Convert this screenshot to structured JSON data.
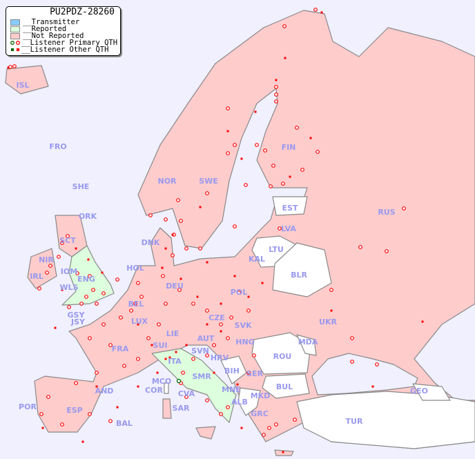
{
  "legend": {
    "title": "PU2PDZ-28260",
    "items": [
      {
        "label": "__Transmitter",
        "color": "#88ccff"
      },
      {
        "label": "__Reported",
        "color": "#ddffdd"
      },
      {
        "label": "__Not Reported",
        "color": "#ffcccc"
      },
      {
        "label": "__Listener Primary QTH",
        "icon": "open-circle-marker"
      },
      {
        "label": "__Listener Other QTH",
        "icon": "square-marker"
      }
    ]
  },
  "colors": {
    "sea": "#f0f0ff",
    "not_reported": "#ffcccc",
    "reported": "#ddffdd",
    "no_data": "#ffffff",
    "marker": "#ff0000",
    "border": "#888888",
    "label": "#9999ee"
  },
  "countries": {
    "reported": [
      "ENG",
      "ITA"
    ],
    "labels": [
      "ISL",
      "FRO",
      "SHE",
      "ORK",
      "SCT",
      "NIR",
      "IRL",
      "IOM",
      "WLS",
      "ENG",
      "GSY",
      "JSY",
      "HOL",
      "BEL",
      "LUX",
      "DNK",
      "NOR",
      "SWE",
      "FIN",
      "EST",
      "LVA",
      "LTU",
      "KAL",
      "BLR",
      "RUS",
      "DEU",
      "POL",
      "CZE",
      "SVK",
      "AUT",
      "HNG",
      "SUI",
      "LIE",
      "FRA",
      "ITA",
      "SVN",
      "HRV",
      "SMR",
      "BIH",
      "SER",
      "MNE",
      "ALB",
      "MKD",
      "GRC",
      "ROU",
      "MDA",
      "BUL",
      "TUR",
      "GEO",
      "UKR",
      "MCO",
      "COR",
      "CVA",
      "SAR",
      "AND",
      "POR",
      "ESP",
      "BAL"
    ]
  }
}
